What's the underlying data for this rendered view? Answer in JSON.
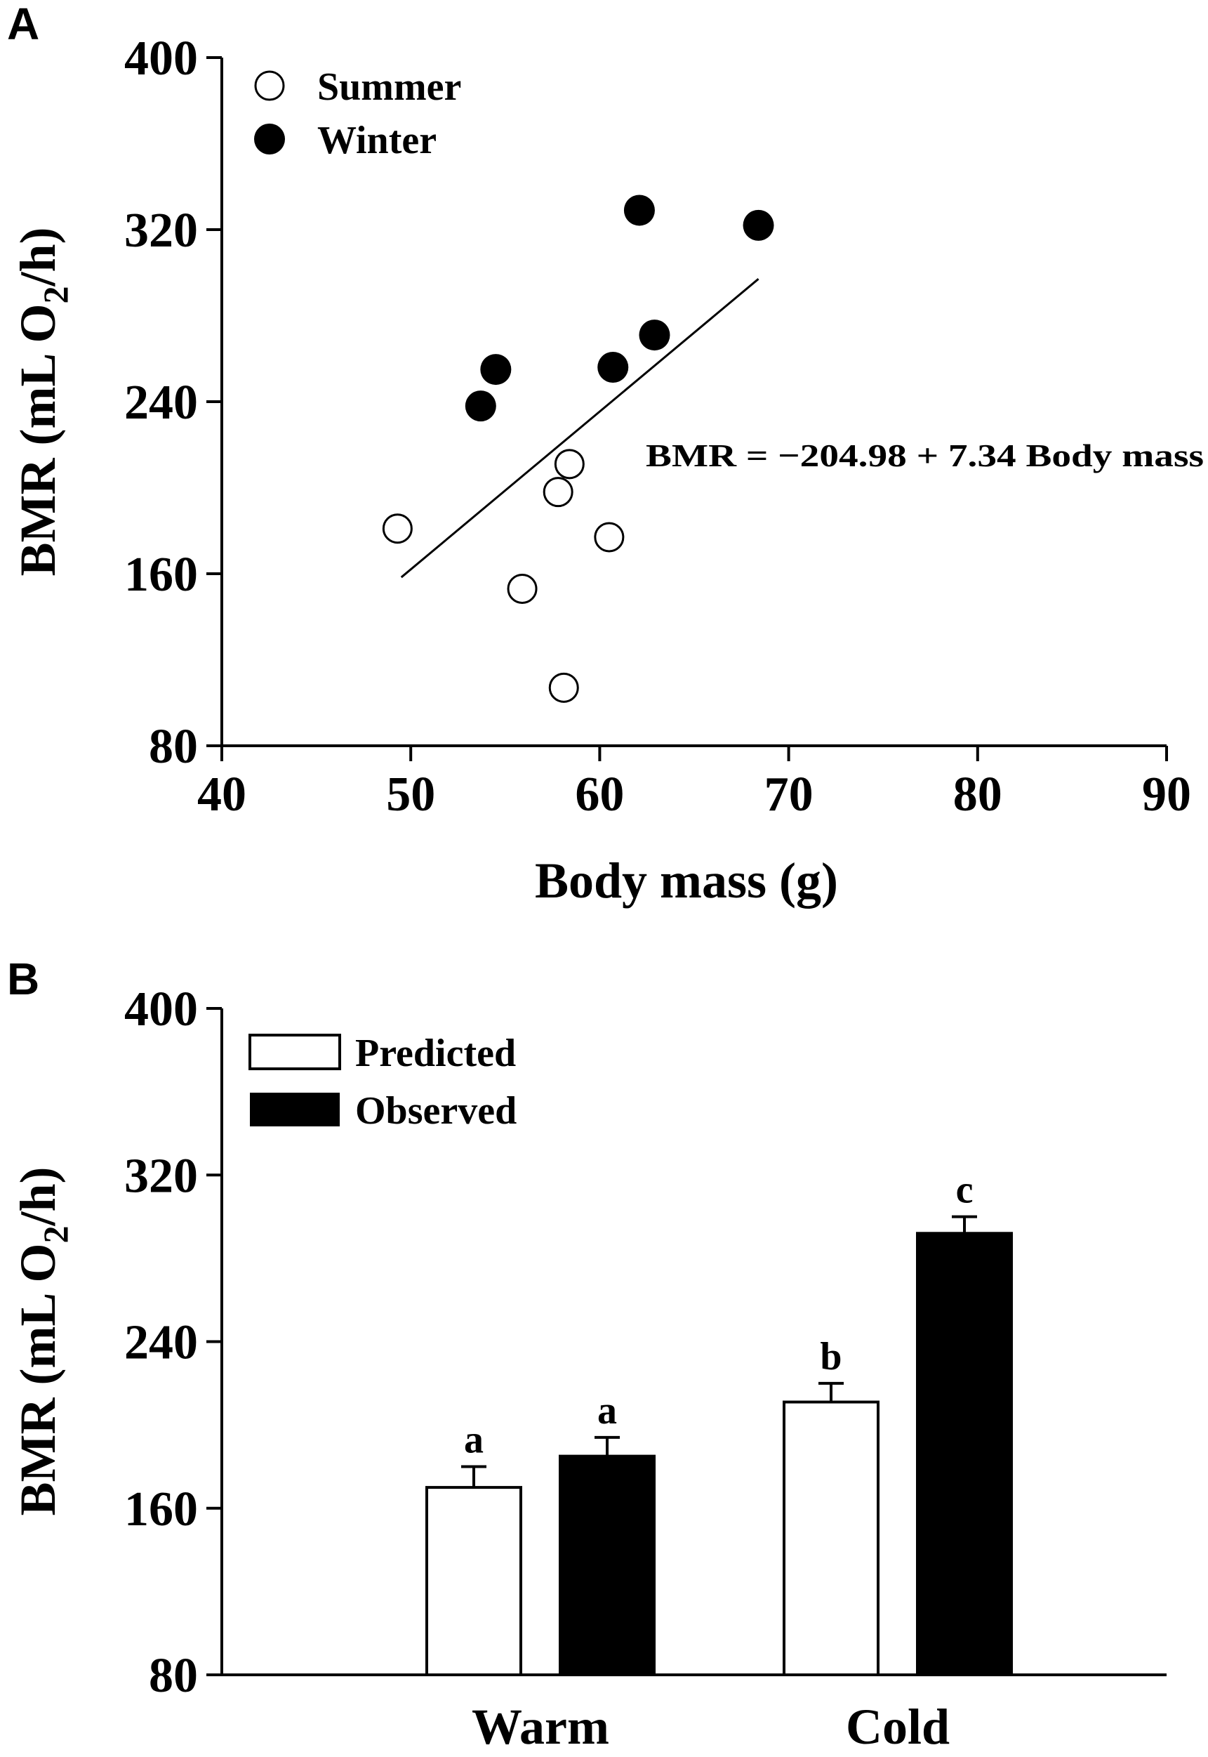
{
  "chart_data": [
    {
      "panel": "A",
      "type": "scatter",
      "xlabel": "Body mass (g)",
      "ylabel": "BMR (mL O2/h)",
      "xlim": [
        40,
        90
      ],
      "ylim": [
        80,
        400
      ],
      "xticks": [
        "40",
        "50",
        "60",
        "70",
        "80",
        "90"
      ],
      "yticks": [
        "80",
        "160",
        "240",
        "320",
        "400"
      ],
      "legend_position": "top-left",
      "series": [
        {
          "name": "Summer",
          "marker": "open-circle",
          "points": [
            {
              "x": 49.3,
              "y": 181
            },
            {
              "x": 55.9,
              "y": 153
            },
            {
              "x": 57.8,
              "y": 198
            },
            {
              "x": 58.4,
              "y": 211
            },
            {
              "x": 58.1,
              "y": 107
            },
            {
              "x": 60.5,
              "y": 177
            }
          ]
        },
        {
          "name": "Winter",
          "marker": "filled-circle",
          "points": [
            {
              "x": 53.7,
              "y": 238
            },
            {
              "x": 54.5,
              "y": 255
            },
            {
              "x": 60.7,
              "y": 256
            },
            {
              "x": 62.1,
              "y": 329
            },
            {
              "x": 62.9,
              "y": 271
            },
            {
              "x": 68.4,
              "y": 322
            }
          ]
        }
      ],
      "regression": {
        "intercept": -204.98,
        "slope": 7.34,
        "x_range": [
          49.5,
          68.4
        ]
      },
      "annotation": "BMR = −204.98 + 7.34 Body mass"
    },
    {
      "panel": "B",
      "type": "bar",
      "ylabel": "BMR (mL O2/h)",
      "ylim": [
        80,
        400
      ],
      "yticks": [
        "80",
        "160",
        "240",
        "320",
        "400"
      ],
      "categories": [
        "Warm",
        "Cold"
      ],
      "legend_position": "top-left",
      "series": [
        {
          "name": "Predicted",
          "fill": "#ffffff",
          "values": [
            170,
            211
          ],
          "errors": [
            10,
            9
          ],
          "labels": [
            "a",
            "b"
          ]
        },
        {
          "name": "Observed",
          "fill": "#000000",
          "values": [
            185,
            292
          ],
          "errors": [
            9,
            8
          ],
          "labels": [
            "a",
            "c"
          ]
        }
      ]
    }
  ]
}
